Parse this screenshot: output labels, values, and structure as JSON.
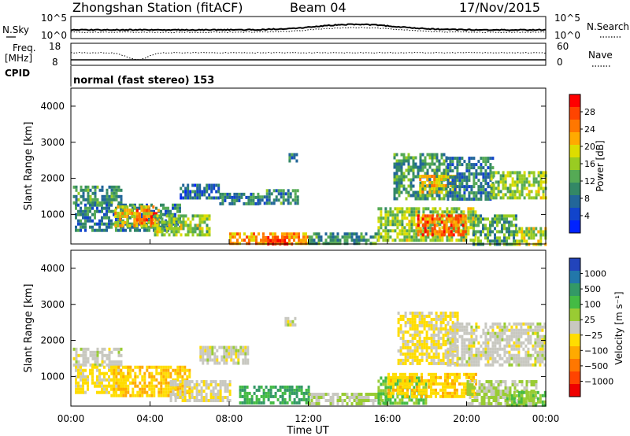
{
  "header": {
    "title": "Zhongshan Station (fitACF)",
    "beam": "Beam 04",
    "date": "17/Nov/2015"
  },
  "panels": {
    "nsky": {
      "left_label": "N.Sky",
      "right_label": "N.Search",
      "left_ticks": [
        "10^5",
        "10^0"
      ],
      "right_ticks": [
        "10^5",
        "10^0"
      ]
    },
    "freq": {
      "left_label_1": "Freq.",
      "left_label_2": "[MHz]",
      "right_label": "Nave",
      "left_ticks": [
        "18",
        "8"
      ],
      "right_ticks": [
        "60",
        "0"
      ]
    },
    "cpid": {
      "label": "CPID",
      "text": "normal (fast stereo) 153"
    }
  },
  "power_colorbar": {
    "label": "Power [dB]",
    "ticks": [
      "28",
      "24",
      "20",
      "16",
      "12",
      "8",
      "4"
    ],
    "colors": [
      "#ff0000",
      "#ff4400",
      "#ff7700",
      "#ffaa00",
      "#dddd00",
      "#99cc22",
      "#55aa55",
      "#338866",
      "#226699",
      "#1144cc",
      "#0022ff"
    ]
  },
  "velocity_colorbar": {
    "label": "Velocity [m s⁻¹]",
    "ticks": [
      "1000",
      "500",
      "100",
      "25",
      "−25",
      "−100",
      "−500",
      "−1000"
    ],
    "colors": [
      "#2244bb",
      "#2277aa",
      "#339966",
      "#44bb44",
      "#99cc33",
      "#c8c8c0",
      "#ffdd00",
      "#ffaa00",
      "#ff7700",
      "#ff4400",
      "#ee0000"
    ]
  },
  "chart_data": [
    {
      "type": "heatmap",
      "title": "",
      "ylabel": "Slant Range [km]",
      "xlabel": "",
      "ylim": [
        180,
        4500
      ],
      "y_ticks": [
        "1000",
        "2000",
        "3000",
        "4000"
      ],
      "x_ticks": [],
      "quantity": "Power [dB]",
      "value_range": [
        0,
        30
      ],
      "regions": [
        {
          "t0": 0.1,
          "t1": 2.6,
          "r0": 1300,
          "r1": 1800,
          "v": 10
        },
        {
          "t0": 0.2,
          "t1": 5.5,
          "r0": 600,
          "r1": 1300,
          "v": 8
        },
        {
          "t0": 2.2,
          "t1": 4.2,
          "r0": 700,
          "r1": 1250,
          "v": 19
        },
        {
          "t0": 3.3,
          "t1": 4.4,
          "r0": 800,
          "r1": 1150,
          "v": 26
        },
        {
          "t0": 4.2,
          "t1": 7.0,
          "r0": 400,
          "r1": 1000,
          "v": 15
        },
        {
          "t0": 5.5,
          "t1": 7.5,
          "r0": 1450,
          "r1": 1850,
          "v": 6
        },
        {
          "t0": 7.5,
          "t1": 9.5,
          "r0": 1300,
          "r1": 1600,
          "v": 8
        },
        {
          "t0": 9.5,
          "t1": 11.5,
          "r0": 1300,
          "r1": 1700,
          "v": 9
        },
        {
          "t0": 8.0,
          "t1": 12.0,
          "r0": 200,
          "r1": 500,
          "v": 22
        },
        {
          "t0": 9.8,
          "t1": 11.2,
          "r0": 200,
          "r1": 400,
          "v": 28
        },
        {
          "t0": 11.0,
          "t1": 11.4,
          "r0": 2500,
          "r1": 2700,
          "v": 6
        },
        {
          "t0": 12.0,
          "t1": 15.5,
          "r0": 200,
          "r1": 500,
          "v": 9
        },
        {
          "t0": 15.5,
          "t1": 20.5,
          "r0": 250,
          "r1": 1200,
          "v": 15
        },
        {
          "t0": 17.5,
          "t1": 20.0,
          "r0": 450,
          "r1": 1000,
          "v": 25
        },
        {
          "t0": 16.3,
          "t1": 19.0,
          "r0": 1400,
          "r1": 2700,
          "v": 10
        },
        {
          "t0": 17.6,
          "t1": 19.5,
          "r0": 1600,
          "r1": 2100,
          "v": 20
        },
        {
          "t0": 19.0,
          "t1": 21.3,
          "r0": 1400,
          "r1": 2600,
          "v": 8
        },
        {
          "t0": 20.3,
          "t1": 22.5,
          "r0": 200,
          "r1": 1000,
          "v": 11
        },
        {
          "t0": 21.2,
          "t1": 24.0,
          "r0": 1500,
          "r1": 2200,
          "v": 15
        },
        {
          "t0": 22.5,
          "t1": 24.0,
          "r0": 200,
          "r1": 650,
          "v": 16
        }
      ]
    },
    {
      "type": "heatmap",
      "title": "",
      "ylabel": "Slant Range [km]",
      "xlabel": "Time UT",
      "ylim": [
        180,
        4500
      ],
      "y_ticks": [
        "1000",
        "2000",
        "3000",
        "4000"
      ],
      "x_ticks": [
        "00:00",
        "04:00",
        "08:00",
        "12:00",
        "16:00",
        "20:00",
        "00:00"
      ],
      "quantity": "Velocity [m s⁻¹]",
      "value_range": [
        -1200,
        1200
      ],
      "regions": [
        {
          "t0": 0.1,
          "t1": 2.6,
          "r0": 1300,
          "r1": 1800,
          "v": 0
        },
        {
          "t0": 0.2,
          "t1": 3.0,
          "r0": 600,
          "r1": 1300,
          "v": -200
        },
        {
          "t0": 2.0,
          "t1": 6.0,
          "r0": 500,
          "r1": 1300,
          "v": -350
        },
        {
          "t0": 5.0,
          "t1": 8.0,
          "r0": 350,
          "r1": 900,
          "v": -60
        },
        {
          "t0": 6.5,
          "t1": 9.0,
          "r0": 1400,
          "r1": 1850,
          "v": 0
        },
        {
          "t0": 8.5,
          "t1": 12.0,
          "r0": 250,
          "r1": 750,
          "v": 600
        },
        {
          "t0": 10.8,
          "t1": 11.3,
          "r0": 2450,
          "r1": 2650,
          "v": 0
        },
        {
          "t0": 12.0,
          "t1": 16.0,
          "r0": 250,
          "r1": 550,
          "v": 120
        },
        {
          "t0": 15.5,
          "t1": 18.0,
          "r0": 300,
          "r1": 1000,
          "v": 400
        },
        {
          "t0": 16.0,
          "t1": 20.5,
          "r0": 450,
          "r1": 1100,
          "v": -300
        },
        {
          "t0": 16.5,
          "t1": 19.5,
          "r0": 1400,
          "r1": 2800,
          "v": -150
        },
        {
          "t0": 19.0,
          "t1": 24.0,
          "r0": 1300,
          "r1": 2500,
          "v": 0
        },
        {
          "t0": 20.0,
          "t1": 23.5,
          "r0": 250,
          "r1": 900,
          "v": 150
        },
        {
          "t0": 22.0,
          "t1": 24.0,
          "r0": 250,
          "r1": 600,
          "v": 350
        }
      ]
    }
  ]
}
